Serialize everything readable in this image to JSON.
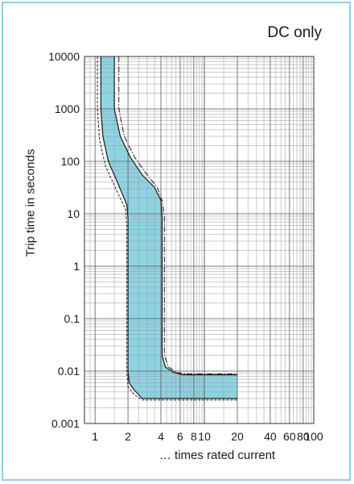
{
  "chart_data": {
    "type": "area",
    "title": "",
    "annotation": "DC only",
    "xlabel": "… times rated current",
    "ylabel": "Trip time in seconds",
    "x_scale": "log",
    "y_scale": "log",
    "xlim": [
      0.8,
      100
    ],
    "ylim": [
      0.001,
      10000
    ],
    "x_tick_labels": [
      "1",
      "2",
      "4",
      "6",
      "8",
      "10",
      "20",
      "40",
      "60",
      "80",
      "100"
    ],
    "x_tick_values": [
      1,
      2,
      4,
      6,
      8,
      10,
      20,
      40,
      60,
      80,
      100
    ],
    "y_tick_labels": [
      "0.001",
      "0.01",
      "0.1",
      "1",
      "10",
      "100",
      "1000",
      "10000"
    ],
    "y_tick_values": [
      0.001,
      0.01,
      0.1,
      1,
      10,
      100,
      1000,
      10000
    ],
    "grid": true,
    "band_color": "#8fd3e3",
    "series": [
      {
        "role": "band-left",
        "points": [
          [
            1.13,
            10000
          ],
          [
            1.13,
            1000
          ],
          [
            1.18,
            300
          ],
          [
            1.32,
            100
          ],
          [
            1.6,
            40
          ],
          [
            1.95,
            15
          ],
          [
            2.0,
            8
          ],
          [
            2.0,
            1
          ],
          [
            2.0,
            0.1
          ],
          [
            2.0,
            0.01
          ],
          [
            2.05,
            0.006
          ],
          [
            2.25,
            0.0045
          ],
          [
            2.7,
            0.003
          ],
          [
            20,
            0.003
          ]
        ]
      },
      {
        "role": "band-right",
        "points": [
          [
            1.5,
            10000
          ],
          [
            1.5,
            1000
          ],
          [
            1.7,
            300
          ],
          [
            2.1,
            120
          ],
          [
            2.7,
            55
          ],
          [
            3.5,
            32
          ],
          [
            4.0,
            18
          ],
          [
            4.1,
            9
          ],
          [
            4.1,
            1
          ],
          [
            4.1,
            0.1
          ],
          [
            4.1,
            0.02
          ],
          [
            4.4,
            0.012
          ],
          [
            5.2,
            0.0095
          ],
          [
            6.3,
            0.0085
          ],
          [
            20,
            0.0085
          ]
        ]
      },
      {
        "role": "dashed-left",
        "points": [
          [
            1.05,
            10000
          ],
          [
            1.05,
            1000
          ],
          [
            1.1,
            250
          ],
          [
            1.25,
            80
          ],
          [
            1.55,
            30
          ],
          [
            1.9,
            12
          ],
          [
            1.95,
            6
          ],
          [
            1.95,
            1
          ],
          [
            1.95,
            0.1
          ],
          [
            1.95,
            0.01
          ],
          [
            2.0,
            0.005
          ],
          [
            2.3,
            0.0035
          ],
          [
            2.7,
            0.0028
          ],
          [
            20,
            0.0028
          ]
        ]
      },
      {
        "role": "dashdot-right",
        "points": [
          [
            1.65,
            10000
          ],
          [
            1.65,
            1000
          ],
          [
            1.85,
            300
          ],
          [
            2.3,
            120
          ],
          [
            3.0,
            55
          ],
          [
            3.7,
            32
          ],
          [
            4.1,
            18
          ],
          [
            4.3,
            9
          ],
          [
            4.3,
            1
          ],
          [
            4.3,
            0.1
          ],
          [
            4.3,
            0.02
          ],
          [
            4.7,
            0.012
          ],
          [
            5.5,
            0.0095
          ],
          [
            6.6,
            0.0088
          ],
          [
            20,
            0.0088
          ]
        ]
      }
    ]
  }
}
